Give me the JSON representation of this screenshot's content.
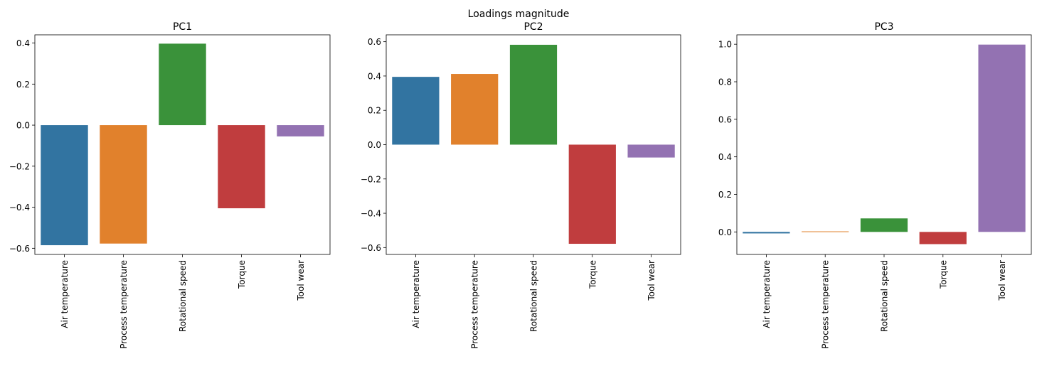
{
  "figure_title": "Loadings magnitude",
  "chart_data": [
    {
      "type": "bar",
      "title": "PC1",
      "categories": [
        "Air temperature",
        "Process temperature",
        "Rotational speed",
        "Torque",
        "Tool wear"
      ],
      "values": [
        -0.585,
        -0.577,
        0.397,
        -0.405,
        -0.055
      ],
      "ylim": [
        -0.63,
        0.44
      ],
      "yticks": [
        -0.6,
        -0.4,
        -0.2,
        0.0,
        0.2,
        0.4
      ],
      "ytick_labels": [
        "−0.6",
        "−0.4",
        "−0.2",
        "0.0",
        "0.2",
        "0.4"
      ],
      "xlabel": "",
      "ylabel": ""
    },
    {
      "type": "bar",
      "title": "PC2",
      "categories": [
        "Air temperature",
        "Process temperature",
        "Rotational speed",
        "Torque",
        "Tool wear"
      ],
      "values": [
        0.395,
        0.412,
        0.582,
        -0.578,
        -0.075
      ],
      "ylim": [
        -0.64,
        0.64
      ],
      "yticks": [
        -0.6,
        -0.4,
        -0.2,
        0.0,
        0.2,
        0.4,
        0.6
      ],
      "ytick_labels": [
        "−0.6",
        "−0.4",
        "−0.2",
        "0.0",
        "0.2",
        "0.4",
        "0.6"
      ],
      "xlabel": "",
      "ylabel": ""
    },
    {
      "type": "bar",
      "title": "PC3",
      "categories": [
        "Air temperature",
        "Process temperature",
        "Rotational speed",
        "Torque",
        "Tool wear"
      ],
      "values": [
        -0.008,
        0.003,
        0.072,
        -0.065,
        0.998
      ],
      "ylim": [
        -0.12,
        1.05
      ],
      "yticks": [
        0.0,
        0.2,
        0.4,
        0.6,
        0.8,
        1.0
      ],
      "ytick_labels": [
        "0.0",
        "0.2",
        "0.4",
        "0.6",
        "0.8",
        "1.0"
      ],
      "xlabel": "",
      "ylabel": ""
    }
  ],
  "colors": [
    "#3274a1",
    "#e1812c",
    "#3a923a",
    "#c03d3e",
    "#9372b2"
  ],
  "grid": false,
  "legend": "none"
}
